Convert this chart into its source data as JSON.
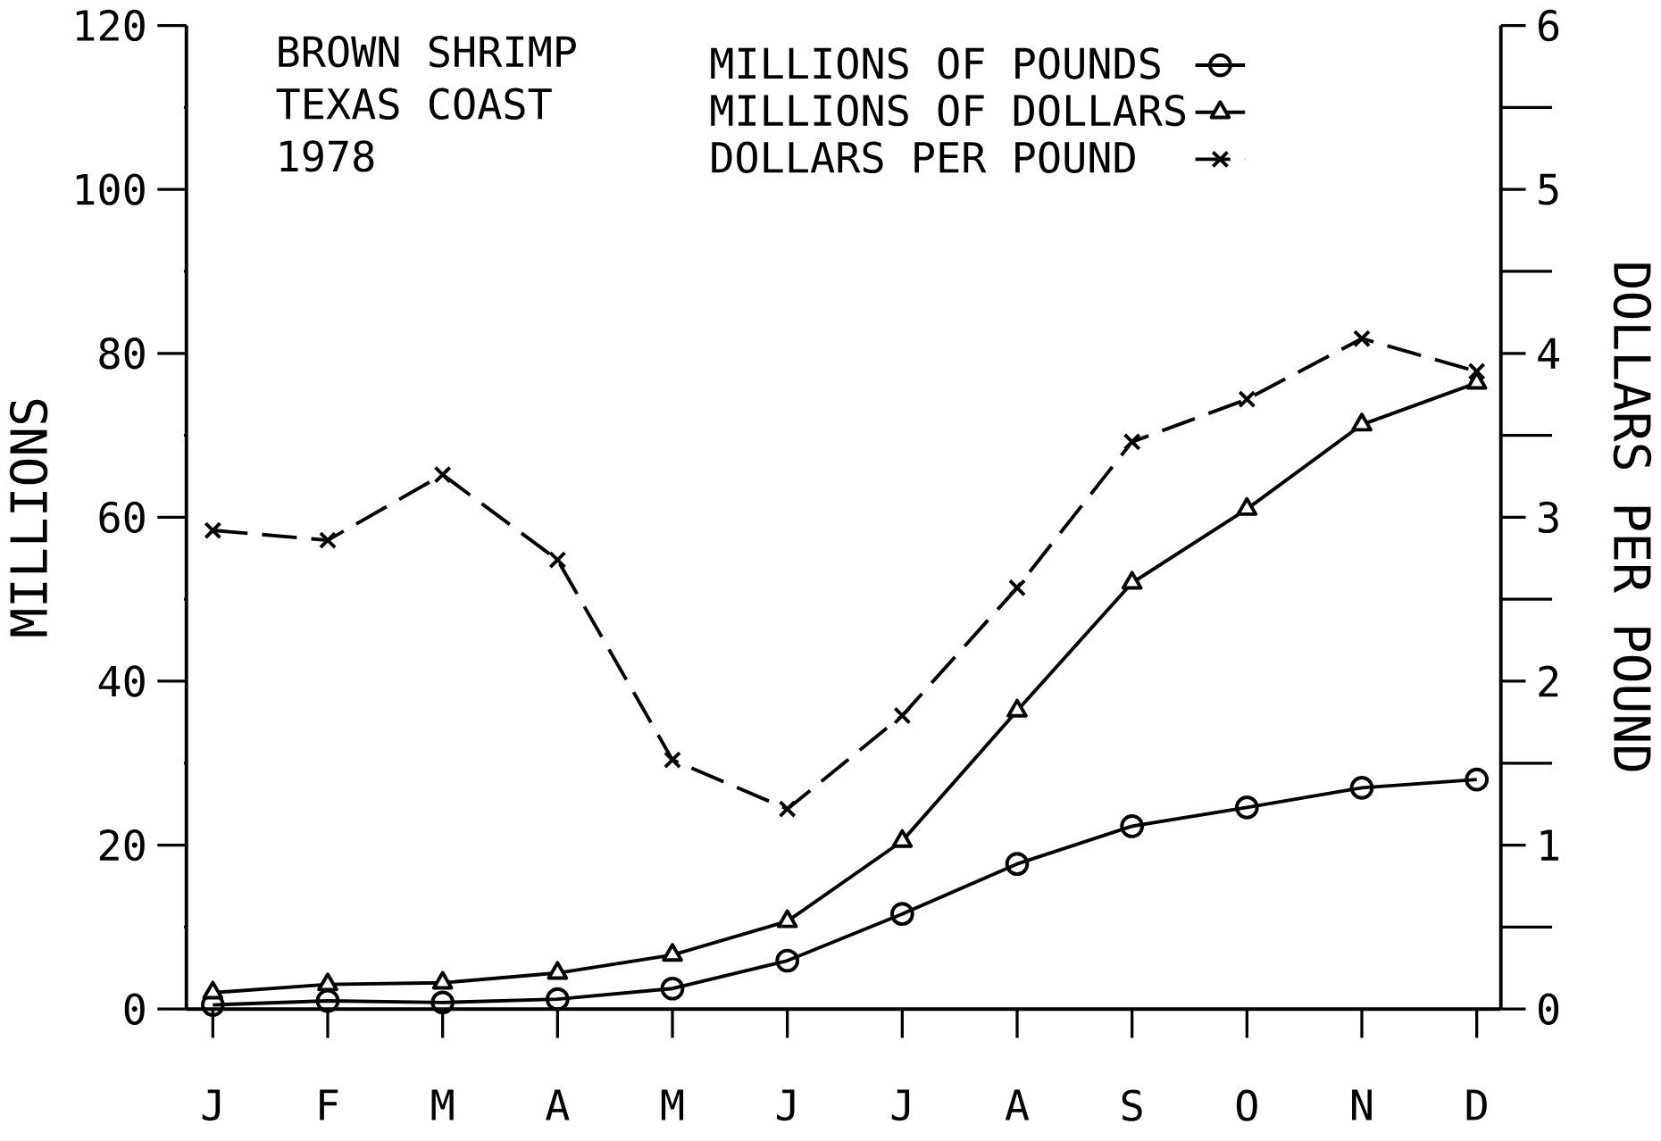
{
  "chart_data": {
    "type": "line",
    "title": "BROWN SHRIMP",
    "subtitle": "TEXAS COAST",
    "annotations": [
      "1978"
    ],
    "ylabel": "MILLIONS",
    "y2label": "DOLLARS PER POUND",
    "categories": [
      "J",
      "F",
      "M",
      "A",
      "M",
      "J",
      "J",
      "A",
      "S",
      "O",
      "N",
      "D"
    ],
    "ylim": [
      0,
      120
    ],
    "yticks": [
      0,
      {
        "value": 10,
        "label": null
      },
      20,
      {
        "value": 30,
        "label": null
      },
      40,
      {
        "value": 50,
        "label": null
      },
      60,
      {
        "value": 70,
        "label": null
      },
      80,
      {
        "value": 90,
        "label": null
      },
      100,
      {
        "value": 110,
        "label": null
      },
      120
    ],
    "y2lim": [
      0,
      6
    ],
    "y2ticks": [
      0,
      {
        "value": 0.5,
        "label": null
      },
      1,
      {
        "value": 1.5,
        "label": null
      },
      2,
      {
        "value": 2.5,
        "label": null
      },
      3,
      {
        "value": 3.5,
        "label": null
      },
      4,
      {
        "value": 4.5,
        "label": null
      },
      5,
      {
        "value": 5.5,
        "label": null
      },
      6
    ],
    "legend": "top",
    "series": [
      {
        "name": "MILLIONS OF POUNDS",
        "color": "#000000",
        "marker": "circle",
        "line_style": "solid",
        "values": [
          0.5,
          1,
          0.8,
          1.2,
          2.5,
          5.9,
          11.6,
          17.7,
          22.3,
          24.6,
          27,
          28
        ]
      },
      {
        "name": "MILLIONS OF DOLLARS",
        "color": "#000000",
        "marker": "triangle",
        "line_style": "solid",
        "values": [
          2,
          3,
          3.2,
          4.4,
          6.6,
          10.7,
          20.5,
          36.4,
          52,
          61,
          71.3,
          76.4
        ]
      },
      {
        "name": "DOLLARS PER POUND",
        "color": "#000000",
        "marker": "cross",
        "line_style": "dashed",
        "axis": "y2",
        "values": [
          2.92,
          2.86,
          3.26,
          2.74,
          1.52,
          1.22,
          1.79,
          2.57,
          3.46,
          3.72,
          4.09,
          3.89
        ]
      }
    ]
  }
}
